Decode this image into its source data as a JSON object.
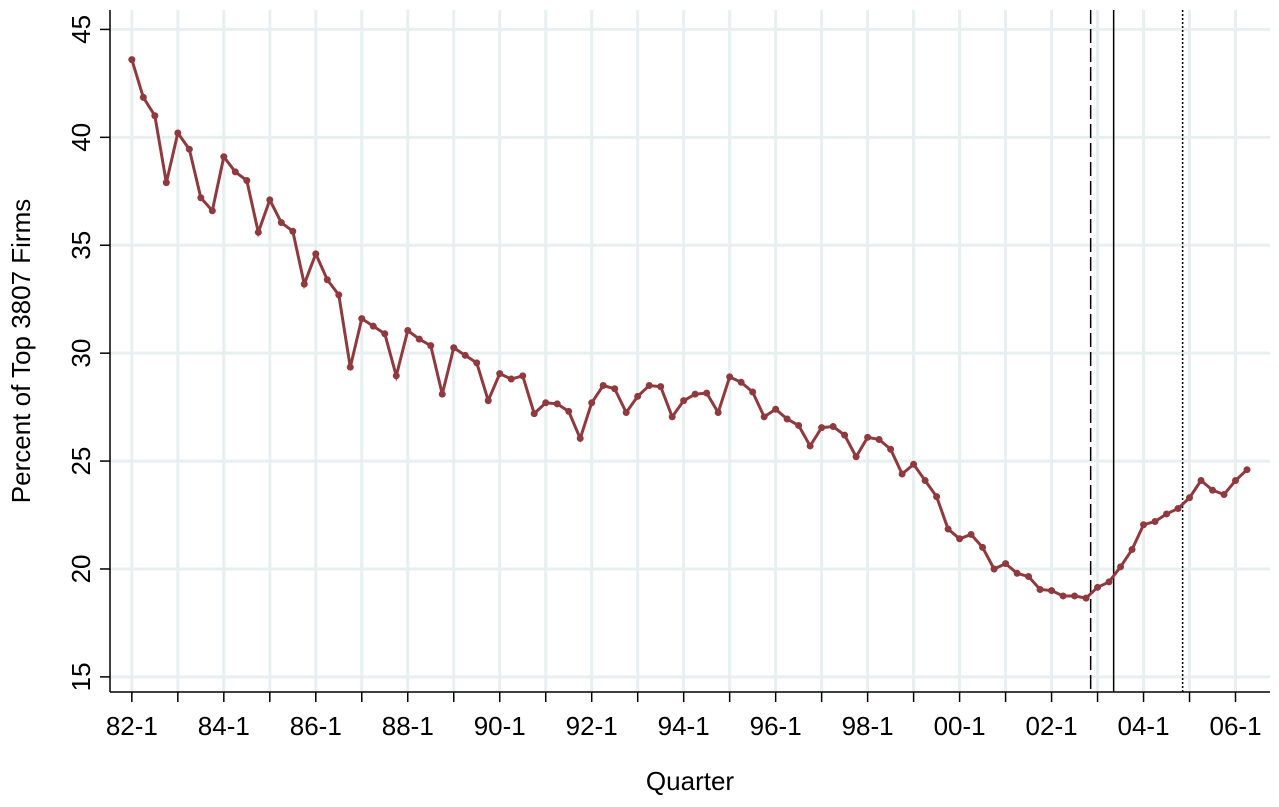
{
  "chart_data": {
    "type": "line",
    "x_label": "Quarter",
    "y_label": "Percent of Top 3807 Firms",
    "categories": [
      "82-1",
      null,
      null,
      null,
      null,
      null,
      null,
      null,
      "84-1",
      null,
      null,
      null,
      null,
      null,
      null,
      null,
      "86-1",
      null,
      null,
      null,
      null,
      null,
      null,
      null,
      "88-1",
      null,
      null,
      null,
      null,
      null,
      null,
      null,
      "90-1",
      null,
      null,
      null,
      null,
      null,
      null,
      null,
      "92-1",
      null,
      null,
      null,
      null,
      null,
      null,
      null,
      "94-1",
      null,
      null,
      null,
      null,
      null,
      null,
      null,
      "96-1",
      null,
      null,
      null,
      null,
      null,
      null,
      null,
      "98-1",
      null,
      null,
      null,
      null,
      null,
      null,
      null,
      "00-1",
      null,
      null,
      null,
      null,
      null,
      null,
      null,
      "02-1",
      null,
      null,
      null,
      null,
      null,
      null,
      null,
      "04-1",
      null,
      null,
      null,
      null,
      null,
      null,
      null,
      "06-1",
      null
    ],
    "series": [
      {
        "color": "#8e3a3f",
        "values": [
          43.6,
          41.85,
          41.0,
          37.9,
          40.2,
          39.45,
          37.2,
          36.6,
          39.1,
          38.4,
          38.0,
          35.6,
          37.1,
          36.05,
          35.65,
          33.2,
          34.6,
          33.4,
          32.7,
          29.35,
          31.6,
          31.25,
          30.9,
          28.95,
          31.05,
          30.65,
          30.35,
          28.1,
          30.25,
          29.9,
          29.55,
          27.8,
          29.05,
          28.8,
          28.95,
          27.2,
          27.7,
          27.65,
          27.3,
          26.05,
          27.7,
          28.5,
          28.35,
          27.25,
          28.0,
          28.5,
          28.45,
          27.05,
          27.8,
          28.1,
          28.15,
          27.25,
          28.9,
          28.65,
          28.2,
          27.05,
          27.4,
          26.95,
          26.65,
          25.7,
          26.55,
          26.6,
          26.2,
          25.2,
          26.1,
          26.0,
          25.55,
          24.4,
          24.85,
          24.1,
          23.35,
          21.85,
          21.4,
          21.6,
          21.0,
          20.0,
          20.25,
          19.8,
          19.65,
          19.05,
          19.0,
          18.75,
          18.75,
          18.65,
          19.15,
          19.4,
          20.1,
          20.9,
          22.05,
          22.2,
          22.55,
          22.8,
          23.3,
          24.1,
          23.65,
          23.45,
          24.1,
          24.6
        ]
      }
    ],
    "ylim": [
      14.3,
      45.9
    ],
    "yticks": [
      15,
      20,
      25,
      30,
      35,
      40,
      45
    ],
    "xlim": [
      -1.9,
      99
    ],
    "grid": true,
    "reference_lines": [
      {
        "x": 83.4,
        "style": "dashed"
      },
      {
        "x": 85.4,
        "style": "solid"
      },
      {
        "x": 91.4,
        "style": "dotted"
      }
    ]
  }
}
